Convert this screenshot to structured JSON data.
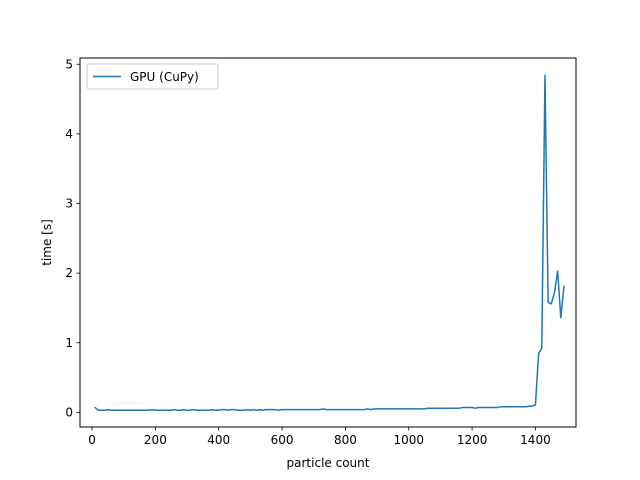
{
  "chart_data": {
    "type": "line",
    "title": "",
    "xlabel": "particle count",
    "ylabel": "time [s]",
    "xlim": [
      -38,
      1528
    ],
    "ylim": [
      -0.21,
      5.09
    ],
    "xticks": [
      0,
      200,
      400,
      600,
      800,
      1000,
      1200,
      1400
    ],
    "yticks": [
      0,
      1,
      2,
      3,
      4,
      5
    ],
    "grid": false,
    "legend": {
      "position": "top-left"
    },
    "series": [
      {
        "name": "GPU (CuPy)",
        "color": "#1f77b4",
        "x": [
          10,
          20,
          30,
          40,
          50,
          60,
          70,
          80,
          90,
          100,
          110,
          120,
          130,
          140,
          150,
          160,
          170,
          180,
          190,
          200,
          210,
          220,
          230,
          240,
          250,
          260,
          270,
          280,
          290,
          300,
          310,
          320,
          330,
          340,
          350,
          360,
          370,
          380,
          390,
          400,
          410,
          420,
          430,
          440,
          450,
          460,
          470,
          480,
          490,
          500,
          510,
          520,
          530,
          540,
          550,
          560,
          570,
          580,
          590,
          600,
          610,
          620,
          630,
          640,
          650,
          660,
          670,
          680,
          690,
          700,
          710,
          720,
          730,
          740,
          750,
          760,
          770,
          780,
          790,
          800,
          810,
          820,
          830,
          840,
          850,
          860,
          870,
          880,
          890,
          900,
          910,
          920,
          930,
          940,
          950,
          960,
          970,
          980,
          990,
          1000,
          1010,
          1020,
          1030,
          1040,
          1050,
          1060,
          1070,
          1080,
          1090,
          1100,
          1110,
          1120,
          1130,
          1140,
          1150,
          1160,
          1170,
          1180,
          1190,
          1200,
          1210,
          1220,
          1230,
          1240,
          1250,
          1260,
          1270,
          1280,
          1290,
          1300,
          1310,
          1320,
          1330,
          1340,
          1350,
          1360,
          1370,
          1380,
          1390,
          1400,
          1410,
          1420,
          1430,
          1440,
          1450,
          1460,
          1470,
          1480,
          1490
        ],
        "y": [
          0.07,
          0.03,
          0.03,
          0.03,
          0.04,
          0.03,
          0.03,
          0.03,
          0.03,
          0.03,
          0.03,
          0.03,
          0.03,
          0.03,
          0.03,
          0.03,
          0.03,
          0.03,
          0.04,
          0.03,
          0.03,
          0.03,
          0.03,
          0.03,
          0.03,
          0.04,
          0.03,
          0.03,
          0.04,
          0.03,
          0.03,
          0.04,
          0.03,
          0.03,
          0.03,
          0.03,
          0.03,
          0.04,
          0.03,
          0.03,
          0.04,
          0.04,
          0.03,
          0.04,
          0.04,
          0.03,
          0.03,
          0.03,
          0.04,
          0.03,
          0.04,
          0.03,
          0.04,
          0.03,
          0.04,
          0.04,
          0.04,
          0.04,
          0.03,
          0.04,
          0.04,
          0.04,
          0.04,
          0.04,
          0.04,
          0.04,
          0.04,
          0.04,
          0.04,
          0.04,
          0.04,
          0.04,
          0.05,
          0.04,
          0.04,
          0.04,
          0.04,
          0.04,
          0.04,
          0.04,
          0.04,
          0.04,
          0.04,
          0.04,
          0.04,
          0.04,
          0.05,
          0.04,
          0.05,
          0.05,
          0.05,
          0.05,
          0.05,
          0.05,
          0.05,
          0.05,
          0.05,
          0.05,
          0.05,
          0.05,
          0.05,
          0.05,
          0.05,
          0.05,
          0.05,
          0.06,
          0.06,
          0.06,
          0.06,
          0.06,
          0.06,
          0.06,
          0.06,
          0.06,
          0.06,
          0.06,
          0.07,
          0.07,
          0.07,
          0.07,
          0.06,
          0.07,
          0.07,
          0.07,
          0.07,
          0.07,
          0.07,
          0.07,
          0.08,
          0.08,
          0.08,
          0.08,
          0.08,
          0.08,
          0.08,
          0.08,
          0.08,
          0.09,
          0.09,
          0.11,
          0.85,
          0.92,
          4.84,
          1.58,
          1.56,
          1.72,
          2.03,
          1.36,
          1.81
        ]
      }
    ]
  }
}
